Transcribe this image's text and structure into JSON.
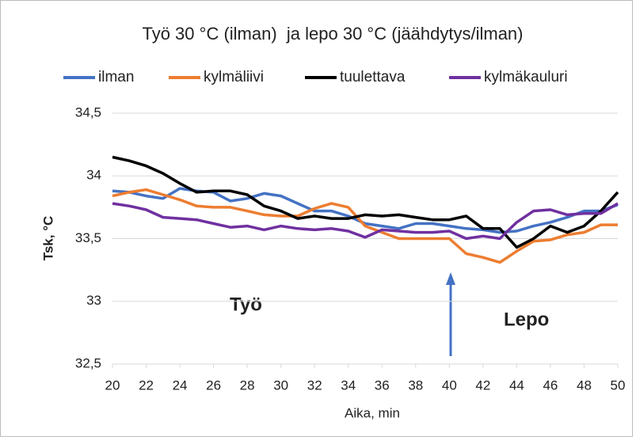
{
  "chart_data": {
    "type": "line",
    "title": "Työ 30 °C (ilman)  ja lepo 30 °C (jäähdytys/ilman)",
    "x_label": "Aika, min",
    "y_label": "Tsk, °C",
    "annotations": [
      "Työ",
      "Lepo"
    ],
    "x": [
      20,
      21,
      22,
      23,
      24,
      25,
      26,
      27,
      28,
      29,
      30,
      31,
      32,
      33,
      34,
      35,
      36,
      37,
      38,
      39,
      40,
      41,
      42,
      43,
      44,
      45,
      46,
      47,
      48,
      49,
      50
    ],
    "xlim": [
      20,
      50
    ],
    "xticks": [
      20,
      22,
      24,
      26,
      28,
      30,
      32,
      34,
      36,
      38,
      40,
      42,
      44,
      46,
      48,
      50
    ],
    "ylim": [
      32.5,
      34.5
    ],
    "yticks": [
      {
        "value": 32.5,
        "label": "32,5"
      },
      33,
      {
        "value": 33.5,
        "label": "33,5"
      },
      34,
      {
        "value": 34.5,
        "label": "34,5"
      }
    ],
    "grid": true,
    "legend": "top",
    "series": [
      {
        "name": "ilman",
        "color": "#4472c4",
        "values": [
          33.88,
          33.87,
          33.84,
          33.82,
          33.9,
          33.88,
          33.87,
          33.8,
          33.82,
          33.86,
          33.84,
          33.78,
          33.72,
          33.72,
          33.68,
          33.62,
          33.6,
          33.58,
          33.62,
          33.62,
          33.6,
          33.58,
          33.57,
          33.55,
          33.56,
          33.6,
          33.63,
          33.67,
          33.72,
          33.72,
          33.77
        ]
      },
      {
        "name": "kylmäliivi",
        "color": "#ed7d31",
        "values": [
          33.84,
          33.87,
          33.89,
          33.85,
          33.81,
          33.76,
          33.75,
          33.75,
          33.72,
          33.69,
          33.68,
          33.68,
          33.74,
          33.78,
          33.75,
          33.6,
          33.55,
          33.5,
          33.5,
          33.5,
          33.5,
          33.38,
          33.35,
          33.31,
          33.4,
          33.48,
          33.49,
          33.53,
          33.55,
          33.61,
          33.61
        ]
      },
      {
        "name": "tuulettava",
        "color": "#000000",
        "values": [
          34.15,
          34.12,
          34.08,
          34.02,
          33.94,
          33.87,
          33.88,
          33.88,
          33.85,
          33.76,
          33.72,
          33.66,
          33.68,
          33.66,
          33.66,
          33.69,
          33.68,
          33.69,
          33.67,
          33.65,
          33.65,
          33.68,
          33.58,
          33.58,
          33.43,
          33.5,
          33.6,
          33.55,
          33.6,
          33.72,
          33.87
        ]
      },
      {
        "name": "kylmäkauluri",
        "color": "#7030a0",
        "values": [
          33.78,
          33.76,
          33.73,
          33.67,
          33.66,
          33.65,
          33.62,
          33.59,
          33.6,
          33.57,
          33.6,
          33.58,
          33.57,
          33.58,
          33.56,
          33.51,
          33.57,
          33.56,
          33.55,
          33.55,
          33.56,
          33.5,
          33.52,
          33.5,
          33.63,
          33.72,
          33.73,
          33.69,
          33.7,
          33.7,
          33.78
        ]
      }
    ]
  }
}
